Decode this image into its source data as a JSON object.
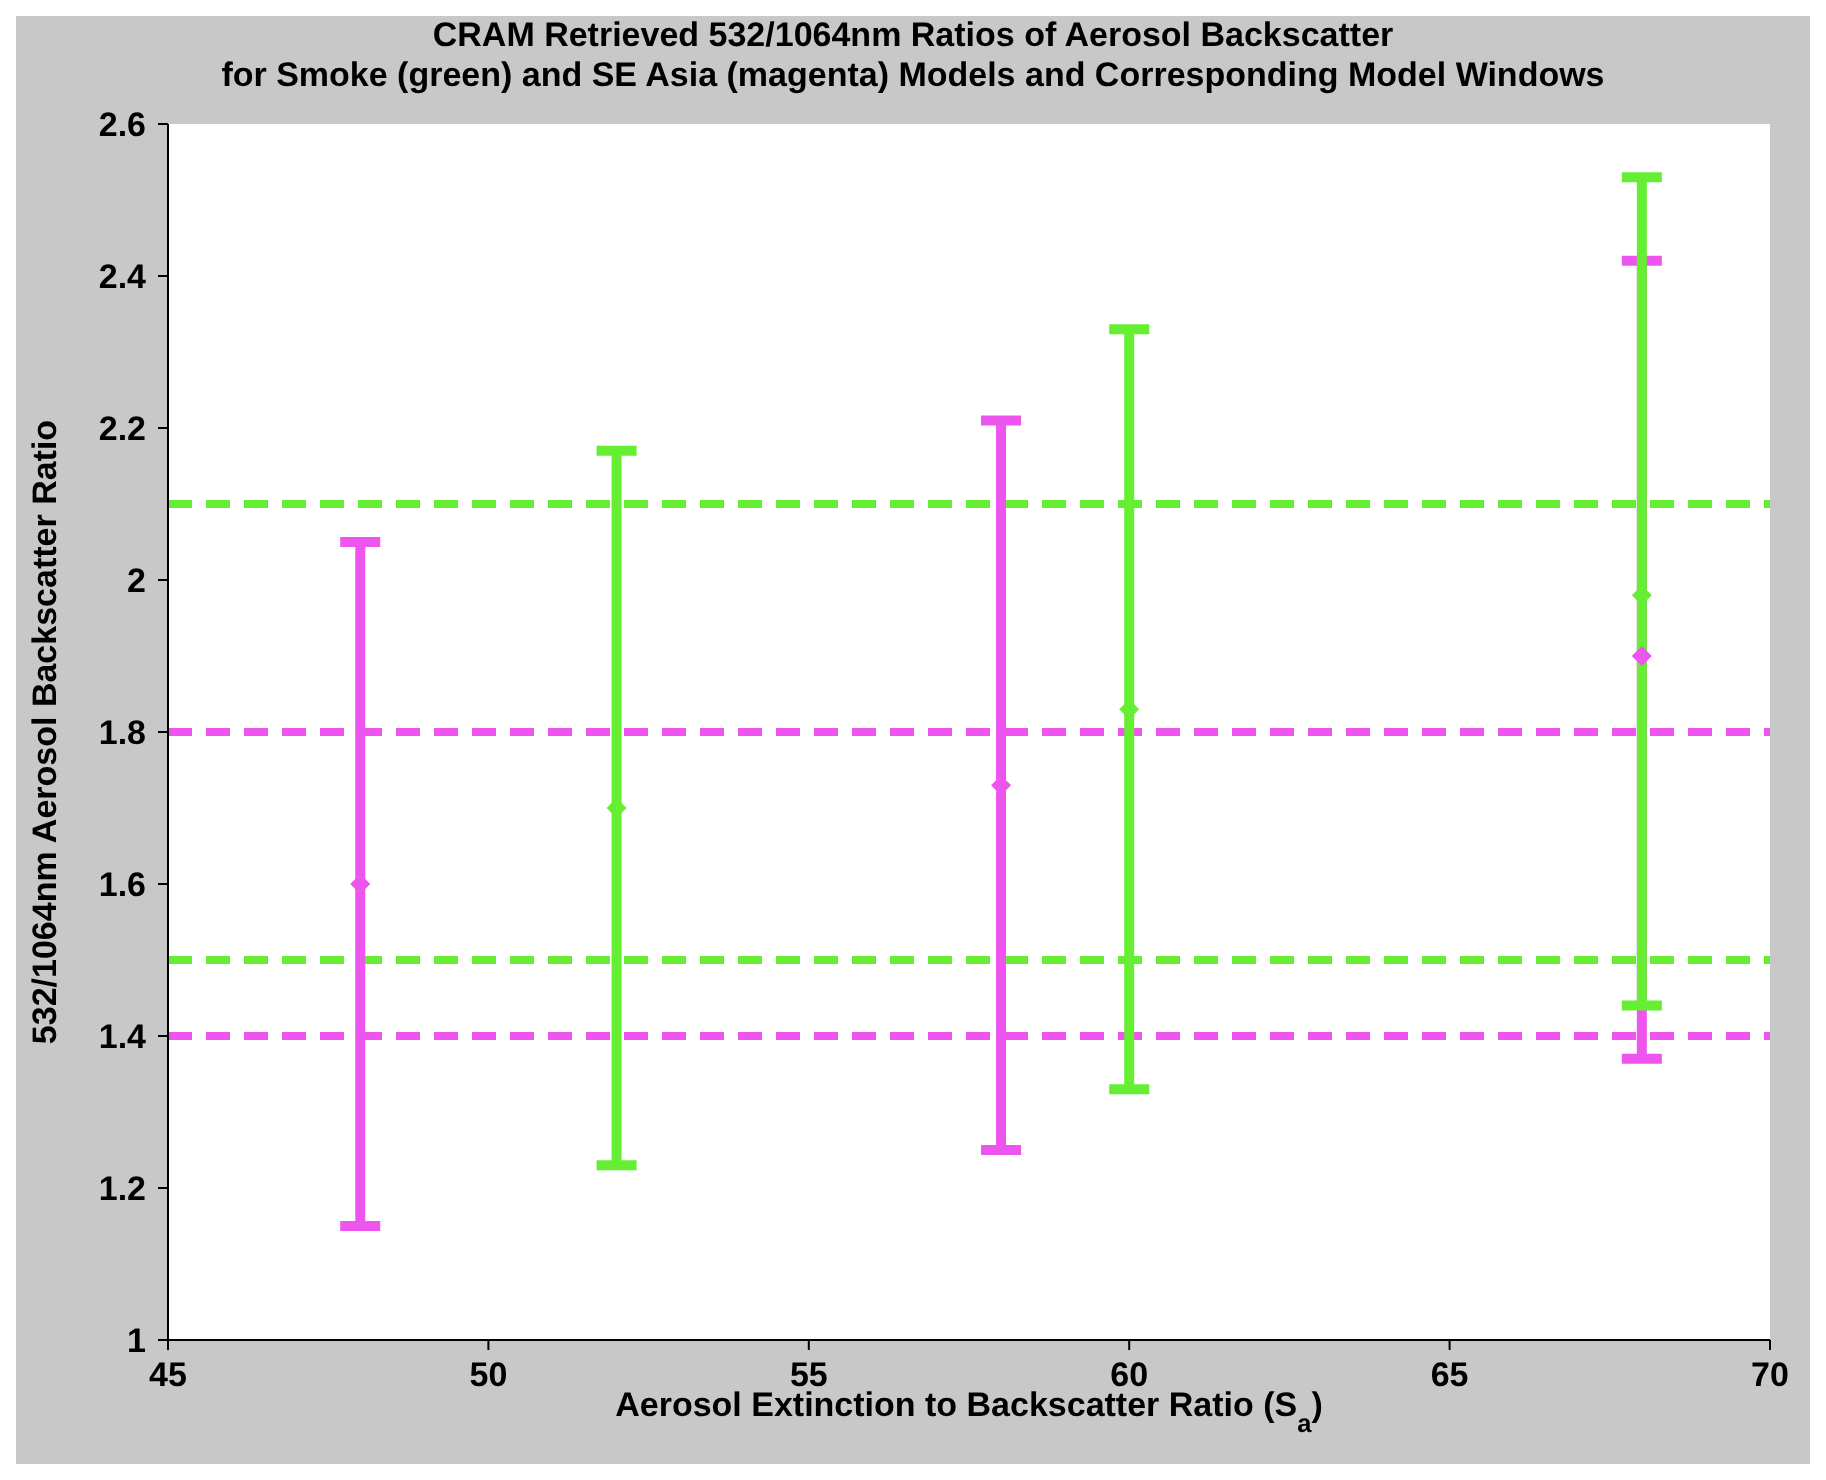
{
  "chart_data": {
    "type": "scatter",
    "title": "CRAM Retrieved 532/1064nm Ratios of Aerosol Backscatter",
    "subtitle": "for Smoke (green) and SE Asia (magenta) Models and Corresponding Model Windows",
    "xlabel": "Aerosol Extinction to Backscatter Ratio (S$_{a}$)",
    "ylabel": "532/1064nm Aerosol Backscatter Ratio",
    "xlim": [
      45,
      70
    ],
    "xticks": [
      45,
      50,
      55,
      60,
      65,
      70
    ],
    "ylim": [
      1,
      2.6
    ],
    "yticks": [
      1,
      1.2,
      1.4,
      1.6,
      1.8,
      2,
      2.2,
      2.4,
      2.6
    ],
    "legend": false,
    "marker": "diamond",
    "series": [
      {
        "color": "#ee55ee",
        "x": [
          48,
          58,
          68
        ],
        "values": [
          1.6,
          1.73,
          1.9
        ],
        "errors": [
          [
            1.15,
            2.05
          ],
          [
            1.25,
            2.21
          ],
          [
            1.37,
            2.42
          ]
        ]
      },
      {
        "color": "#66ee33",
        "x": [
          52,
          60,
          68
        ],
        "values": [
          1.7,
          1.83,
          1.98
        ],
        "errors": [
          [
            1.23,
            2.17
          ],
          [
            1.33,
            2.33
          ],
          [
            1.44,
            2.53
          ]
        ]
      }
    ],
    "ref_lines": [
      {
        "axis": "y",
        "value": 2.1,
        "color": "#66ee33",
        "line_style": "dashed"
      },
      {
        "axis": "y",
        "value": 1.5,
        "color": "#66ee33",
        "line_style": "dashed"
      },
      {
        "axis": "y",
        "value": 1.8,
        "color": "#ee55ee",
        "line_style": "dashed"
      },
      {
        "axis": "y",
        "value": 1.4,
        "color": "#ee55ee",
        "line_style": "dashed"
      }
    ]
  }
}
